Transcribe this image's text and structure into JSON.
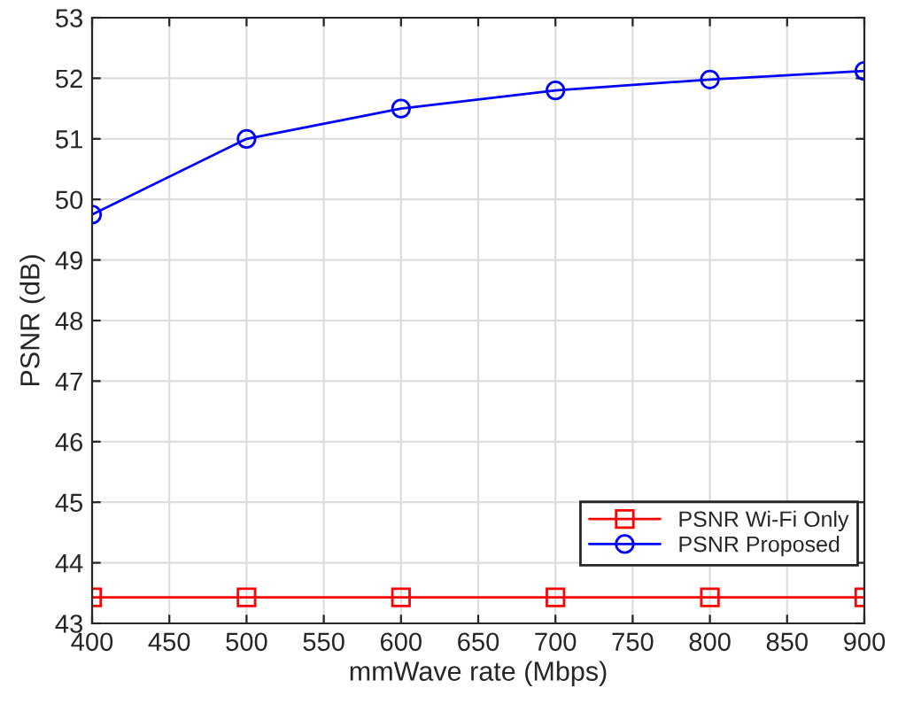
{
  "chart_data": {
    "type": "line",
    "xlabel": "mmWave rate (Mbps)",
    "ylabel": "PSNR (dB)",
    "x": [
      400,
      500,
      600,
      700,
      800,
      900
    ],
    "series": [
      {
        "name": "PSNR Wi-Fi Only",
        "color": "#ff0000",
        "marker": "square",
        "values": [
          43.43,
          43.43,
          43.43,
          43.43,
          43.43,
          43.43
        ]
      },
      {
        "name": "PSNR Proposed",
        "color": "#0000ff",
        "marker": "circle",
        "values": [
          49.75,
          51.0,
          51.5,
          51.8,
          51.98,
          52.12
        ]
      }
    ],
    "xlim": [
      400,
      900
    ],
    "xticks": [
      400,
      450,
      500,
      550,
      600,
      650,
      700,
      750,
      800,
      850,
      900
    ],
    "ylim": [
      43,
      53
    ],
    "yticks": [
      43,
      44,
      45,
      46,
      47,
      48,
      49,
      50,
      51,
      52,
      53
    ],
    "grid": true,
    "legend": "bottom right",
    "line_style": "solid"
  }
}
